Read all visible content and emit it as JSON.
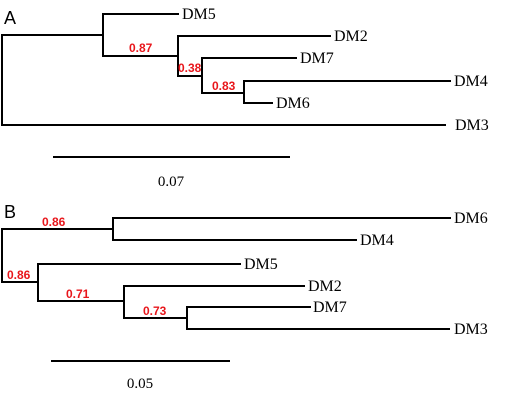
{
  "panels": [
    {
      "label": "A",
      "leaves": [
        "DM5",
        "DM2",
        "DM7",
        "DM4",
        "DM6",
        "DM3"
      ],
      "supports": [
        "0.87",
        "0.38",
        "0.83"
      ],
      "scale": {
        "value": "0.07"
      }
    },
    {
      "label": "B",
      "leaves": [
        "DM6",
        "DM4",
        "DM5",
        "DM2",
        "DM7",
        "DM3"
      ],
      "supports": [
        "0.86",
        "0.86",
        "0.71",
        "0.73"
      ],
      "scale": {
        "value": "0.05"
      }
    }
  ],
  "colors": {
    "branch": "#000000",
    "support": "#e8161b"
  }
}
